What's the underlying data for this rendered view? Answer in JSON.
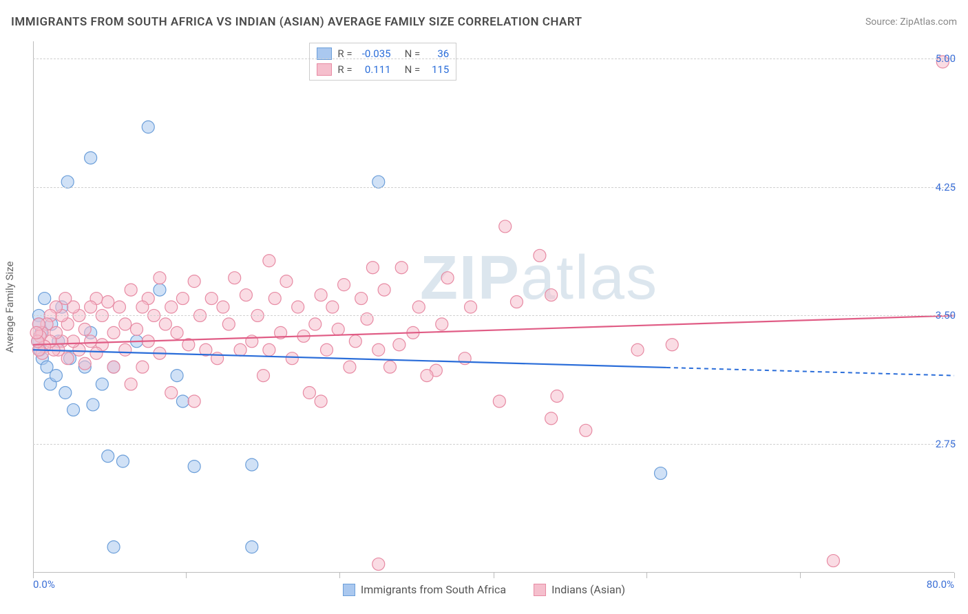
{
  "header": {
    "title": "IMMIGRANTS FROM SOUTH AFRICA VS INDIAN (ASIAN) AVERAGE FAMILY SIZE CORRELATION CHART",
    "source_prefix": "Source: ",
    "source_name": "ZipAtlas.com"
  },
  "watermark": {
    "bold": "ZIP",
    "rest": "atlas"
  },
  "chart": {
    "type": "scatter",
    "ylabel": "Average Family Size",
    "xlim": [
      0,
      80
    ],
    "ylim": [
      2.0,
      5.1
    ],
    "yticks": [
      2.75,
      3.5,
      4.25,
      5.0
    ],
    "ytick_labels": [
      "2.75",
      "3.50",
      "4.25",
      "5.00"
    ],
    "xticks": [
      0,
      13.3,
      26.6,
      40,
      53.3,
      66.6,
      80
    ],
    "x_start_label": "0.0%",
    "x_end_label": "80.0%",
    "background_color": "#ffffff",
    "grid_color": "#d0d0d0",
    "axis_color": "#bbbbbb",
    "tick_label_color": "#3b6fd6",
    "marker_radius": 9,
    "marker_opacity": 0.55,
    "series": [
      {
        "id": "sa",
        "name": "Immigrants from South Africa",
        "fill": "#aac8ef",
        "stroke": "#6b9ed9",
        "line_color": "#2a6dd9",
        "r_value": "-0.035",
        "n_value": "36",
        "trend": {
          "x1": 0,
          "y1": 3.3,
          "x2": 80,
          "y2": 3.15,
          "solid_until_x": 55
        },
        "points": [
          [
            0.4,
            3.35
          ],
          [
            0.5,
            3.5
          ],
          [
            0.6,
            3.3
          ],
          [
            0.7,
            3.4
          ],
          [
            0.8,
            3.25
          ],
          [
            0.5,
            3.45
          ],
          [
            1.0,
            3.6
          ],
          [
            1.2,
            3.2
          ],
          [
            1.5,
            3.1
          ],
          [
            1.6,
            3.45
          ],
          [
            2.0,
            3.15
          ],
          [
            2.2,
            3.35
          ],
          [
            2.5,
            3.55
          ],
          [
            2.8,
            3.05
          ],
          [
            3.0,
            4.28
          ],
          [
            3.2,
            3.25
          ],
          [
            3.5,
            2.95
          ],
          [
            4.5,
            3.2
          ],
          [
            5.0,
            3.4
          ],
          [
            5.2,
            2.98
          ],
          [
            5.0,
            4.42
          ],
          [
            6.0,
            3.1
          ],
          [
            6.5,
            2.68
          ],
          [
            7.0,
            2.15
          ],
          [
            7.0,
            3.2
          ],
          [
            7.8,
            2.65
          ],
          [
            9.0,
            3.35
          ],
          [
            10.0,
            4.6
          ],
          [
            11.0,
            3.65
          ],
          [
            12.5,
            3.15
          ],
          [
            13.0,
            3.0
          ],
          [
            14.0,
            2.62
          ],
          [
            19.0,
            2.15
          ],
          [
            19.0,
            2.63
          ],
          [
            30.0,
            4.28
          ],
          [
            54.5,
            2.58
          ]
        ]
      },
      {
        "id": "indian",
        "name": "Indians (Asian)",
        "fill": "#f5bfcd",
        "stroke": "#e78aa3",
        "line_color": "#e05c85",
        "r_value": "0.111",
        "n_value": "115",
        "trend": {
          "x1": 0,
          "y1": 3.33,
          "x2": 80,
          "y2": 3.5,
          "solid_until_x": 80
        },
        "points": [
          [
            79.0,
            4.98
          ],
          [
            69.5,
            2.07
          ],
          [
            55.5,
            3.33
          ],
          [
            52.5,
            3.3
          ],
          [
            48.0,
            2.83
          ],
          [
            45.5,
            3.03
          ],
          [
            45.0,
            2.9
          ],
          [
            45.0,
            3.62
          ],
          [
            44.0,
            3.85
          ],
          [
            42.0,
            3.58
          ],
          [
            41.0,
            4.02
          ],
          [
            40.5,
            3.0
          ],
          [
            38.0,
            3.55
          ],
          [
            37.5,
            3.25
          ],
          [
            36.0,
            3.72
          ],
          [
            35.5,
            3.45
          ],
          [
            35.0,
            3.18
          ],
          [
            34.2,
            3.15
          ],
          [
            33.5,
            3.55
          ],
          [
            33.0,
            3.4
          ],
          [
            32.0,
            3.78
          ],
          [
            31.8,
            3.33
          ],
          [
            31.0,
            3.2
          ],
          [
            30.5,
            3.65
          ],
          [
            30.0,
            3.3
          ],
          [
            30.0,
            2.05
          ],
          [
            29.5,
            3.78
          ],
          [
            29.0,
            3.48
          ],
          [
            28.5,
            3.6
          ],
          [
            28.0,
            3.35
          ],
          [
            27.5,
            3.2
          ],
          [
            27.0,
            3.68
          ],
          [
            26.5,
            3.42
          ],
          [
            26.0,
            3.55
          ],
          [
            25.5,
            3.3
          ],
          [
            25.0,
            3.0
          ],
          [
            25.0,
            3.62
          ],
          [
            24.5,
            3.45
          ],
          [
            24.0,
            3.05
          ],
          [
            23.5,
            3.38
          ],
          [
            23.0,
            3.55
          ],
          [
            22.5,
            3.25
          ],
          [
            22.0,
            3.7
          ],
          [
            21.5,
            3.4
          ],
          [
            21.0,
            3.6
          ],
          [
            20.5,
            3.3
          ],
          [
            20.5,
            3.82
          ],
          [
            20.0,
            3.15
          ],
          [
            19.5,
            3.5
          ],
          [
            19.0,
            3.35
          ],
          [
            18.5,
            3.62
          ],
          [
            18.0,
            3.3
          ],
          [
            17.5,
            3.72
          ],
          [
            17.0,
            3.45
          ],
          [
            16.5,
            3.55
          ],
          [
            16.0,
            3.25
          ],
          [
            15.5,
            3.6
          ],
          [
            15.0,
            3.3
          ],
          [
            14.5,
            3.5
          ],
          [
            14.0,
            3.7
          ],
          [
            14.0,
            3.0
          ],
          [
            13.5,
            3.33
          ],
          [
            13.0,
            3.6
          ],
          [
            12.5,
            3.4
          ],
          [
            12.0,
            3.05
          ],
          [
            12.0,
            3.55
          ],
          [
            11.5,
            3.45
          ],
          [
            11.0,
            3.28
          ],
          [
            11.0,
            3.72
          ],
          [
            10.5,
            3.5
          ],
          [
            10.0,
            3.35
          ],
          [
            10.0,
            3.6
          ],
          [
            9.5,
            3.2
          ],
          [
            9.5,
            3.55
          ],
          [
            9.0,
            3.42
          ],
          [
            8.5,
            3.1
          ],
          [
            8.5,
            3.65
          ],
          [
            8.0,
            3.45
          ],
          [
            8.0,
            3.3
          ],
          [
            7.5,
            3.55
          ],
          [
            7.0,
            3.4
          ],
          [
            7.0,
            3.2
          ],
          [
            6.5,
            3.58
          ],
          [
            6.0,
            3.33
          ],
          [
            6.0,
            3.5
          ],
          [
            5.5,
            3.28
          ],
          [
            5.5,
            3.6
          ],
          [
            5.0,
            3.35
          ],
          [
            5.0,
            3.55
          ],
          [
            4.5,
            3.42
          ],
          [
            4.5,
            3.22
          ],
          [
            4.0,
            3.5
          ],
          [
            4.0,
            3.3
          ],
          [
            3.5,
            3.55
          ],
          [
            3.5,
            3.35
          ],
          [
            3.0,
            3.45
          ],
          [
            3.0,
            3.25
          ],
          [
            2.8,
            3.6
          ],
          [
            2.5,
            3.35
          ],
          [
            2.5,
            3.5
          ],
          [
            2.2,
            3.3
          ],
          [
            2.0,
            3.55
          ],
          [
            2.0,
            3.4
          ],
          [
            1.8,
            3.3
          ],
          [
            1.5,
            3.5
          ],
          [
            1.5,
            3.35
          ],
          [
            1.2,
            3.45
          ],
          [
            1.0,
            3.32
          ],
          [
            0.8,
            3.4
          ],
          [
            0.8,
            3.28
          ],
          [
            0.6,
            3.38
          ],
          [
            0.5,
            3.3
          ],
          [
            0.5,
            3.45
          ],
          [
            0.4,
            3.35
          ],
          [
            0.3,
            3.4
          ]
        ]
      }
    ]
  },
  "stats_box": {
    "r_label": "R =",
    "n_label": "N ="
  }
}
